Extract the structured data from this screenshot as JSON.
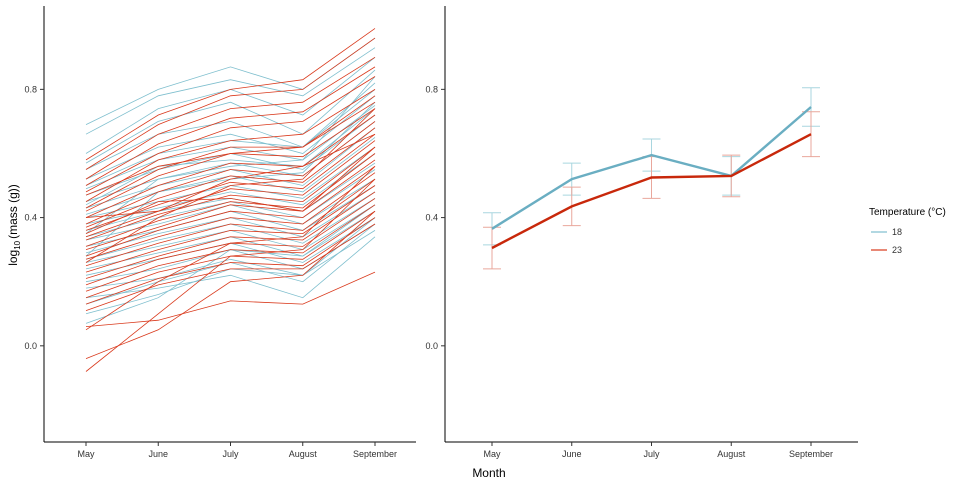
{
  "colors": {
    "t18": "#7fbfce",
    "t23": "#d9391c",
    "t18_mean": "#6aaec2",
    "t23_mean": "#c8280b",
    "t18_err": "#a9d6df",
    "t23_err": "#e9a79c"
  },
  "legend": {
    "title": "Temperature (°C)",
    "items": [
      "18",
      "23"
    ]
  },
  "axis": {
    "x_title": "Month",
    "y_title_main": "log",
    "y_title_sub": "10",
    "y_title_rest": "(mass (g))"
  },
  "chart_data": [
    {
      "type": "line",
      "panel": "individual",
      "categories": [
        "May",
        "June",
        "July",
        "August",
        "September"
      ],
      "ylim": [
        -0.3,
        1.06
      ],
      "yticks": [
        "0.0",
        "0.4",
        "0.8"
      ],
      "ytick_values": [
        0.0,
        0.4,
        0.8
      ],
      "grid": false,
      "groups": [
        {
          "temperature": "18",
          "lines": [
            [
              0.69,
              0.8,
              0.87,
              0.8,
              0.96
            ],
            [
              0.66,
              0.78,
              0.83,
              0.78,
              0.93
            ],
            [
              0.6,
              0.74,
              0.8,
              0.72,
              0.9
            ],
            [
              0.57,
              0.7,
              0.76,
              0.66,
              0.86
            ],
            [
              0.55,
              0.66,
              0.7,
              0.62,
              0.8
            ],
            [
              0.52,
              0.62,
              0.66,
              0.6,
              0.78
            ],
            [
              0.49,
              0.58,
              0.62,
              0.58,
              0.75
            ],
            [
              0.47,
              0.55,
              0.6,
              0.55,
              0.72
            ],
            [
              0.45,
              0.52,
              0.57,
              0.53,
              0.7
            ],
            [
              0.43,
              0.5,
              0.55,
              0.5,
              0.68
            ],
            [
              0.41,
              0.48,
              0.53,
              0.48,
              0.65
            ],
            [
              0.4,
              0.45,
              0.5,
              0.46,
              0.62
            ],
            [
              0.38,
              0.43,
              0.48,
              0.44,
              0.6
            ],
            [
              0.36,
              0.42,
              0.46,
              0.42,
              0.57
            ],
            [
              0.34,
              0.4,
              0.45,
              0.4,
              0.55
            ],
            [
              0.33,
              0.38,
              0.44,
              0.38,
              0.52
            ],
            [
              0.31,
              0.36,
              0.42,
              0.36,
              0.5
            ],
            [
              0.29,
              0.35,
              0.4,
              0.34,
              0.48
            ],
            [
              0.27,
              0.33,
              0.38,
              0.32,
              0.46
            ],
            [
              0.26,
              0.31,
              0.36,
              0.3,
              0.44
            ],
            [
              0.24,
              0.29,
              0.34,
              0.28,
              0.42
            ],
            [
              0.22,
              0.27,
              0.32,
              0.26,
              0.4
            ],
            [
              0.2,
              0.24,
              0.3,
              0.24,
              0.38
            ],
            [
              0.18,
              0.21,
              0.27,
              0.22,
              0.36
            ],
            [
              0.15,
              0.18,
              0.22,
              0.15,
              0.34
            ],
            [
              0.13,
              0.2,
              0.26,
              0.2,
              0.38
            ],
            [
              0.1,
              0.16,
              0.24,
              0.22,
              0.4
            ],
            [
              0.07,
              0.15,
              0.3,
              0.28,
              0.44
            ],
            [
              0.5,
              0.6,
              0.64,
              0.62,
              0.82
            ],
            [
              0.35,
              0.52,
              0.56,
              0.58,
              0.84
            ],
            [
              0.28,
              0.48,
              0.52,
              0.54,
              0.76
            ],
            [
              0.44,
              0.56,
              0.58,
              0.56,
              0.74
            ]
          ]
        },
        {
          "temperature": "23",
          "lines": [
            [
              0.58,
              0.72,
              0.8,
              0.83,
              0.99
            ],
            [
              0.55,
              0.69,
              0.78,
              0.8,
              0.96
            ],
            [
              0.52,
              0.66,
              0.74,
              0.76,
              0.9
            ],
            [
              0.5,
              0.63,
              0.71,
              0.73,
              0.87
            ],
            [
              0.48,
              0.6,
              0.68,
              0.7,
              0.84
            ],
            [
              0.45,
              0.58,
              0.64,
              0.66,
              0.8
            ],
            [
              0.43,
              0.55,
              0.62,
              0.62,
              0.76
            ],
            [
              0.42,
              0.53,
              0.6,
              0.59,
              0.74
            ],
            [
              0.4,
              0.5,
              0.57,
              0.56,
              0.72
            ],
            [
              0.38,
              0.48,
              0.55,
              0.53,
              0.7
            ],
            [
              0.37,
              0.46,
              0.53,
              0.51,
              0.68
            ],
            [
              0.36,
              0.44,
              0.51,
              0.49,
              0.66
            ],
            [
              0.34,
              0.42,
              0.49,
              0.47,
              0.64
            ],
            [
              0.33,
              0.41,
              0.47,
              0.45,
              0.62
            ],
            [
              0.31,
              0.39,
              0.45,
              0.43,
              0.6
            ],
            [
              0.3,
              0.37,
              0.44,
              0.42,
              0.58
            ],
            [
              0.28,
              0.36,
              0.42,
              0.4,
              0.56
            ],
            [
              0.27,
              0.34,
              0.4,
              0.38,
              0.54
            ],
            [
              0.25,
              0.32,
              0.38,
              0.36,
              0.52
            ],
            [
              0.23,
              0.3,
              0.36,
              0.35,
              0.5
            ],
            [
              0.21,
              0.28,
              0.34,
              0.33,
              0.48
            ],
            [
              0.19,
              0.27,
              0.32,
              0.31,
              0.46
            ],
            [
              0.17,
              0.25,
              0.3,
              0.29,
              0.44
            ],
            [
              0.15,
              0.23,
              0.28,
              0.27,
              0.42
            ],
            [
              0.13,
              0.21,
              0.26,
              0.25,
              0.4
            ],
            [
              0.11,
              0.19,
              0.24,
              0.24,
              0.38
            ],
            [
              0.06,
              0.08,
              0.14,
              0.13,
              0.23
            ],
            [
              -0.04,
              0.05,
              0.2,
              0.22,
              0.42
            ],
            [
              -0.08,
              0.1,
              0.28,
              0.3,
              0.52
            ],
            [
              0.05,
              0.2,
              0.32,
              0.34,
              0.56
            ],
            [
              0.26,
              0.4,
              0.5,
              0.52,
              0.74
            ],
            [
              0.35,
              0.45,
              0.46,
              0.42,
              0.62
            ],
            [
              0.4,
              0.42,
              0.52,
              0.56,
              0.66
            ],
            [
              0.47,
              0.56,
              0.6,
              0.62,
              0.78
            ]
          ]
        }
      ]
    },
    {
      "type": "line",
      "panel": "mean",
      "categories": [
        "May",
        "June",
        "July",
        "August",
        "September"
      ],
      "ylim": [
        -0.3,
        1.06
      ],
      "yticks": [
        "0.0",
        "0.4",
        "0.8"
      ],
      "ytick_values": [
        0.0,
        0.4,
        0.8
      ],
      "grid": false,
      "series": [
        {
          "temperature": "18",
          "values": [
            0.365,
            0.52,
            0.595,
            0.53,
            0.745
          ],
          "err": [
            0.05,
            0.05,
            0.05,
            0.06,
            0.06
          ]
        },
        {
          "temperature": "23",
          "values": [
            0.305,
            0.435,
            0.525,
            0.53,
            0.66
          ],
          "err": [
            0.065,
            0.06,
            0.065,
            0.065,
            0.07
          ]
        }
      ]
    }
  ]
}
